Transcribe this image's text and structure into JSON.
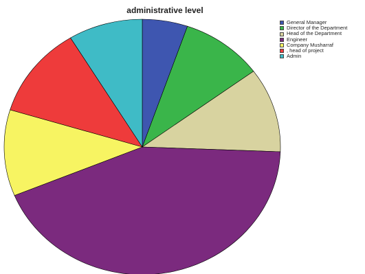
{
  "chart_data": {
    "type": "pie",
    "title": "administrative level",
    "start": "top",
    "direction": "clockwise",
    "slices": [
      {
        "label": "General Manager",
        "value": 5.3,
        "color": "#3e56b0"
      },
      {
        "label": "Director of the Department",
        "value": 9.6,
        "color": "#3ab54a"
      },
      {
        "label": "Head of the Department",
        "value": 10.7,
        "color": "#d8d3a0"
      },
      {
        "label": "Engineer",
        "value": 43.2,
        "color": "#7b2a7e"
      },
      {
        "label": "Company Musharraf",
        "value": 10.9,
        "color": "#f7f462"
      },
      {
        "label": ", head of project",
        "value": 11.6,
        "color": "#ee3b3b"
      },
      {
        "label": "Admin",
        "value": 8.7,
        "color": "#3fbbc6"
      }
    ],
    "legend": "top-right"
  }
}
